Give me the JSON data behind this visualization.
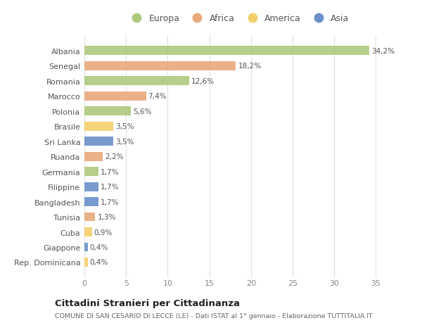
{
  "countries": [
    "Albania",
    "Senegal",
    "Romania",
    "Marocco",
    "Polonia",
    "Brasile",
    "Sri Lanka",
    "Ruanda",
    "Germania",
    "Filippine",
    "Bangladesh",
    "Tunisia",
    "Cuba",
    "Giappone",
    "Rep. Dominicana"
  ],
  "values": [
    34.2,
    18.2,
    12.6,
    7.4,
    5.6,
    3.5,
    3.5,
    2.2,
    1.7,
    1.7,
    1.7,
    1.3,
    0.9,
    0.4,
    0.4
  ],
  "labels": [
    "34,2%",
    "18,2%",
    "12,6%",
    "7,4%",
    "5,6%",
    "3,5%",
    "3,5%",
    "2,2%",
    "1,7%",
    "1,7%",
    "1,7%",
    "1,3%",
    "0,9%",
    "0,4%",
    "0,4%"
  ],
  "continents": [
    "Europa",
    "Africa",
    "Europa",
    "Africa",
    "Europa",
    "America",
    "Asia",
    "Africa",
    "Europa",
    "Asia",
    "Asia",
    "Africa",
    "America",
    "Asia",
    "America"
  ],
  "colors": {
    "Europa": "#adc97e",
    "Africa": "#e8a97c",
    "America": "#f2d06b",
    "Asia": "#6b8fca"
  },
  "legend_order": [
    "Europa",
    "Africa",
    "America",
    "Asia"
  ],
  "title": "Cittadini Stranieri per Cittadinanza",
  "subtitle": "COMUNE DI SAN CESARIO DI LECCE (LE) - Dati ISTAT al 1° gennaio - Elaborazione TUTTITALIA.IT",
  "xlim": [
    0,
    37
  ],
  "xticks": [
    0,
    5,
    10,
    15,
    20,
    25,
    30,
    35
  ],
  "background_color": "#ffffff",
  "grid_color": "#e0e0e0"
}
